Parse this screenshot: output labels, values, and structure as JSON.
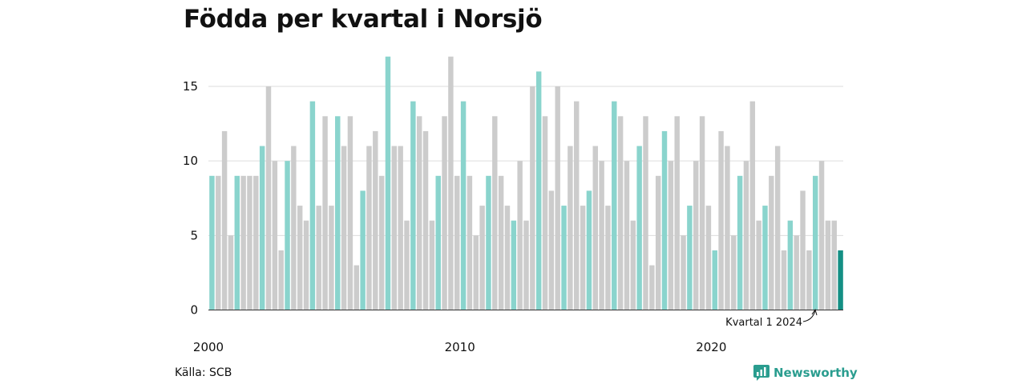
{
  "title": "Födda per kvartal i Norsjö",
  "source": "Källa: SCB",
  "brand": {
    "name": "Newsworthy",
    "icon": "newsworthy-logo-icon"
  },
  "colors": {
    "q1": "#8ad4cd",
    "other": "#cccccc",
    "latest": "#148f84",
    "grid": "#dddddd",
    "axis": "#333333"
  },
  "chart_data": {
    "type": "bar",
    "title": "Födda per kvartal i Norsjö",
    "xlabel": "",
    "ylabel": "",
    "ylim": [
      0,
      17
    ],
    "yticks": [
      0,
      5,
      10,
      15
    ],
    "x_tick_labels": [
      "2000",
      "2010",
      "2020"
    ],
    "grid": true,
    "start_year": 2000,
    "values": [
      9,
      9,
      12,
      5,
      9,
      9,
      9,
      9,
      11,
      15,
      10,
      4,
      10,
      11,
      7,
      6,
      14,
      7,
      13,
      7,
      13,
      11,
      13,
      3,
      8,
      11,
      12,
      9,
      17,
      11,
      11,
      6,
      14,
      13,
      12,
      6,
      9,
      13,
      17,
      9,
      14,
      9,
      5,
      7,
      9,
      13,
      9,
      7,
      6,
      10,
      6,
      15,
      16,
      13,
      8,
      15,
      7,
      11,
      14,
      7,
      8,
      11,
      10,
      7,
      14,
      13,
      10,
      6,
      11,
      13,
      3,
      9,
      12,
      10,
      13,
      5,
      7,
      10,
      13,
      7,
      4,
      12,
      11,
      5,
      9,
      10,
      14,
      6,
      7,
      9,
      11,
      4,
      6,
      5,
      8,
      4,
      9,
      10,
      6,
      6,
      4
    ],
    "annotation": "Kvartal 1 2024"
  }
}
